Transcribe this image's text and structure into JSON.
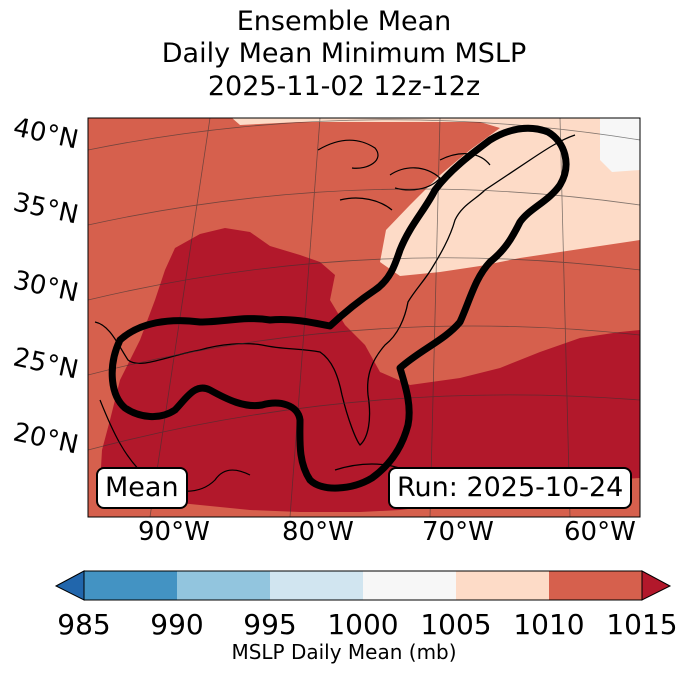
{
  "title": {
    "line1": "Ensemble Mean",
    "line2": "Daily Mean Minimum MSLP",
    "line3": "2025-11-02 12z-12z"
  },
  "map": {
    "lat_labels": [
      "40°N",
      "35°N",
      "30°N",
      "25°N",
      "20°N"
    ],
    "lon_labels": [
      "90°W",
      "80°W",
      "70°W",
      "60°W"
    ],
    "left_box": "Mean",
    "right_box": "Run: 2025-10-24",
    "colors": {
      "c1015": "#b2182b",
      "c1010": "#d6604d",
      "c1005": "#fddbc7",
      "c1000": "#f7f7f7"
    }
  },
  "colorbar": {
    "ticks": [
      "985",
      "990",
      "995",
      "1000",
      "1005",
      "1010",
      "1015"
    ],
    "label": "MSLP Daily Mean (mb)",
    "colors": [
      "#2166ac",
      "#4393c3",
      "#92c5de",
      "#d1e5f0",
      "#f7f7f7",
      "#fddbc7",
      "#d6604d",
      "#b2182b"
    ]
  }
}
